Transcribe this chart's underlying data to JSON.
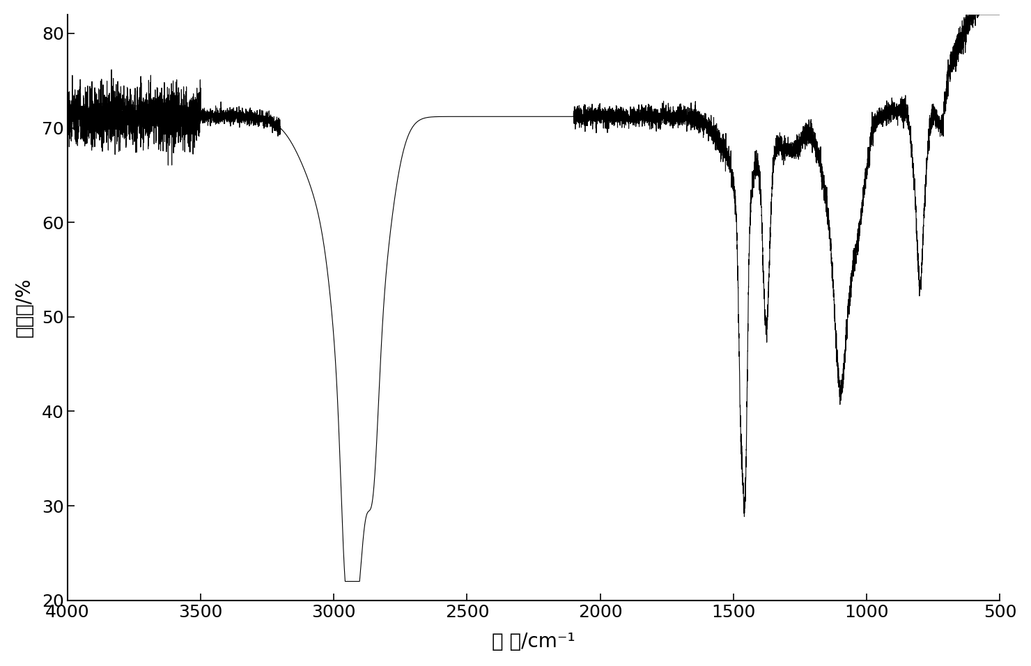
{
  "xlabel": "波 数/cm⁻¹",
  "ylabel": "透光率/%",
  "xlim": [
    4000,
    500
  ],
  "ylim": [
    20,
    82
  ],
  "yticks": [
    20,
    30,
    40,
    50,
    60,
    70,
    80
  ],
  "xticks": [
    4000,
    3500,
    3000,
    2500,
    2000,
    1500,
    1000,
    500
  ],
  "line_color": "#000000",
  "background_color": "#ffffff",
  "xlabel_fontsize": 20,
  "ylabel_fontsize": 20,
  "tick_fontsize": 18,
  "linewidth": 0.8
}
